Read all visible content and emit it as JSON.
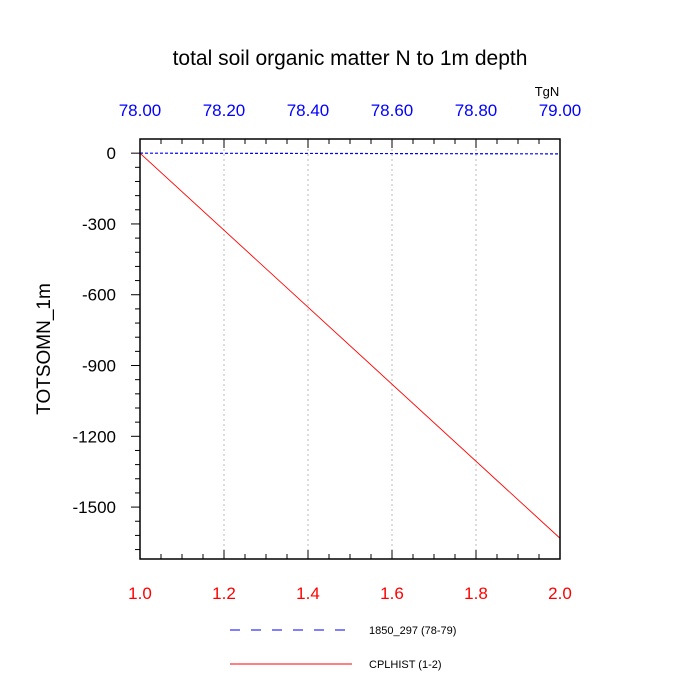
{
  "chart_data": {
    "type": "line",
    "title": "total soil organic matter N to 1m depth",
    "ylabel": "TOTSOMN_1m",
    "top_axis_unit": "TgN",
    "xlim": [
      1.0,
      2.0
    ],
    "ylim": [
      -1720,
      60
    ],
    "x_ticks": [
      "1.0",
      "1.2",
      "1.4",
      "1.6",
      "1.8",
      "2.0"
    ],
    "x_tick_values": [
      1.0,
      1.2,
      1.4,
      1.6,
      1.8,
      2.0
    ],
    "top_ticks": [
      "78.00",
      "78.20",
      "78.40",
      "78.60",
      "78.80",
      "79.00"
    ],
    "top_tick_values": [
      78.0,
      78.2,
      78.4,
      78.6,
      78.8,
      79.0
    ],
    "top_xlim": [
      78.0,
      79.0
    ],
    "y_ticks": [
      "0",
      "-300",
      "-600",
      "-900",
      "-1200",
      "-1500"
    ],
    "y_tick_values": [
      0,
      -300,
      -600,
      -900,
      -1200,
      -1500
    ],
    "grid": "vertical dotted",
    "colors": {
      "bottom_axis": "#ff0000",
      "top_axis": "#0000ff",
      "series_cplhist": "#ff0000",
      "series_1850": "#0000ff",
      "grid": "#bbbbbb",
      "axis": "#000000"
    },
    "series": [
      {
        "name": "1850_297 (78-79)",
        "axis": "top",
        "style": "dashed",
        "x": [
          78.0,
          79.0
        ],
        "y": [
          0,
          -3
        ]
      },
      {
        "name": "CPLHIST (1-2)",
        "axis": "bottom",
        "style": "solid",
        "x": [
          1.0,
          2.0
        ],
        "y": [
          0,
          -1632
        ]
      }
    ],
    "legend": [
      {
        "label": "1850_297 (78-79)",
        "style": "dashed"
      },
      {
        "label": "CPLHIST (1-2)",
        "style": "solid"
      }
    ],
    "legend_position": "bottom-center"
  }
}
